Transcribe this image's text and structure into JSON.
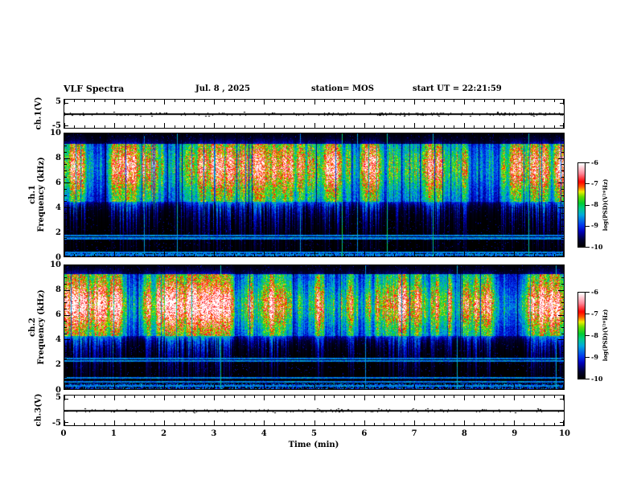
{
  "title": {
    "main": "VLF Spectra",
    "date": "Jul. 8 , 2025",
    "station": "station= MOS",
    "start_ut": "start UT =  22:21:59"
  },
  "axes": {
    "time": {
      "label": "Time (min)",
      "tick_labels": [
        "0",
        "1",
        "2",
        "3",
        "4",
        "5",
        "6",
        "7",
        "8",
        "9",
        "10"
      ],
      "min": 0,
      "max": 10,
      "major_step": 1,
      "minor_step": 0.2
    },
    "freq_ch1": {
      "row_label": "ch.1",
      "axis_label": "Frequency (kHz)",
      "tick_labels": [
        "10",
        "8",
        "6",
        "4",
        "2",
        "0"
      ],
      "min": 0,
      "max": 10
    },
    "freq_ch2": {
      "row_label": "ch.2",
      "axis_label": "Frequency (kHz)",
      "tick_labels": [
        "10",
        "8",
        "6",
        "4",
        "2",
        "0"
      ],
      "min": 0,
      "max": 10
    },
    "volt_ch1": {
      "label": "ch.1(V)",
      "tick_labels": [
        "5",
        "-5"
      ],
      "min": -5,
      "max": 5
    },
    "volt_ch3": {
      "label": "ch.3(V)",
      "tick_labels": [
        "5",
        "-5"
      ],
      "min": -5,
      "max": 5
    }
  },
  "colorbar": {
    "label": "log(PSD)(V²*Hz)",
    "tick_labels": [
      "-6",
      "-7",
      "-8",
      "-9",
      "-10"
    ],
    "min": -10,
    "max": -6,
    "palette": [
      [
        0.0,
        "#000000"
      ],
      [
        0.08,
        "#000033"
      ],
      [
        0.18,
        "#0000bb"
      ],
      [
        0.25,
        "#0033ee"
      ],
      [
        0.38,
        "#00aadd"
      ],
      [
        0.46,
        "#00cc88"
      ],
      [
        0.52,
        "#00cc33"
      ],
      [
        0.6,
        "#66dd00"
      ],
      [
        0.66,
        "#eeee00"
      ],
      [
        0.72,
        "#ff5500"
      ],
      [
        0.78,
        "#ff0000"
      ],
      [
        0.88,
        "#ff8899"
      ],
      [
        1.0,
        "#ffffff"
      ]
    ]
  },
  "chart_data": [
    {
      "type": "line",
      "panel": "ch1-voltage",
      "ylabel": "ch.1(V)",
      "ylim": [
        -5,
        5
      ],
      "xlim": [
        0,
        10
      ],
      "baseline_value": 0,
      "description": "flat waveform trace at 0 V with tiny noise blips",
      "seed": 7
    },
    {
      "type": "heatmap",
      "panel": "ch1-spectrogram",
      "ylabel": "ch.1 Frequency (kHz)",
      "xlabel": "Time (min)",
      "xlim": [
        0,
        10
      ],
      "ylim": [
        0,
        10
      ],
      "zlabel": "log(PSD)(V²*Hz)",
      "zlim": [
        -10,
        -6
      ],
      "features": {
        "band_khz": [
          4.5,
          9.2
        ],
        "core_center_khz": 7.3,
        "core_sigma_khz": 1.35,
        "base_level": 0.52,
        "core_gain": 0.34,
        "gap_probability": 0.07,
        "hot_column_probability": 0.1,
        "narrowband_lines_khz": [
          1.5,
          1.72,
          0.35,
          0.15
        ],
        "bottom_noise_band_khz": 0.35,
        "vertical_line_probability": 0.012,
        "seed": 11
      },
      "description": "bursty broadband VLF emission 4.5-9 kHz (green with red/yellow cores), dark vertical gaps, blue streaks extending below 4 kHz, narrowband horizontal lines near 1.5-1.7 kHz"
    },
    {
      "type": "heatmap",
      "panel": "ch2-spectrogram",
      "ylabel": "ch.2 Frequency (kHz)",
      "xlabel": "Time (min)",
      "xlim": [
        0,
        10
      ],
      "ylim": [
        0,
        10
      ],
      "zlabel": "log(PSD)(V²*Hz)",
      "zlim": [
        -10,
        -6
      ],
      "features": {
        "band_khz": [
          4.3,
          9.3
        ],
        "core_center_khz": 6.8,
        "core_sigma_khz": 1.15,
        "base_level": 0.6,
        "core_gain": 0.38,
        "gap_probability": 0.025,
        "hot_column_probability": 0.3,
        "narrowband_lines_khz": [
          2.5,
          2.33,
          0.95,
          0.6,
          0.3
        ],
        "bottom_noise_band_khz": 0.5,
        "vertical_line_probability": 0.008,
        "seed": 22
      },
      "description": "continuous broadband emission with red-orange core 5.5-8 kHz, narrowband lines near 2.3-2.5 kHz and below 1 kHz"
    },
    {
      "type": "line",
      "panel": "ch3-voltage",
      "ylabel": "ch.3(V)",
      "ylim": [
        -5,
        5
      ],
      "xlim": [
        0,
        10
      ],
      "baseline_value": 0,
      "description": "flat waveform trace at 0 V",
      "seed": 9
    }
  ]
}
